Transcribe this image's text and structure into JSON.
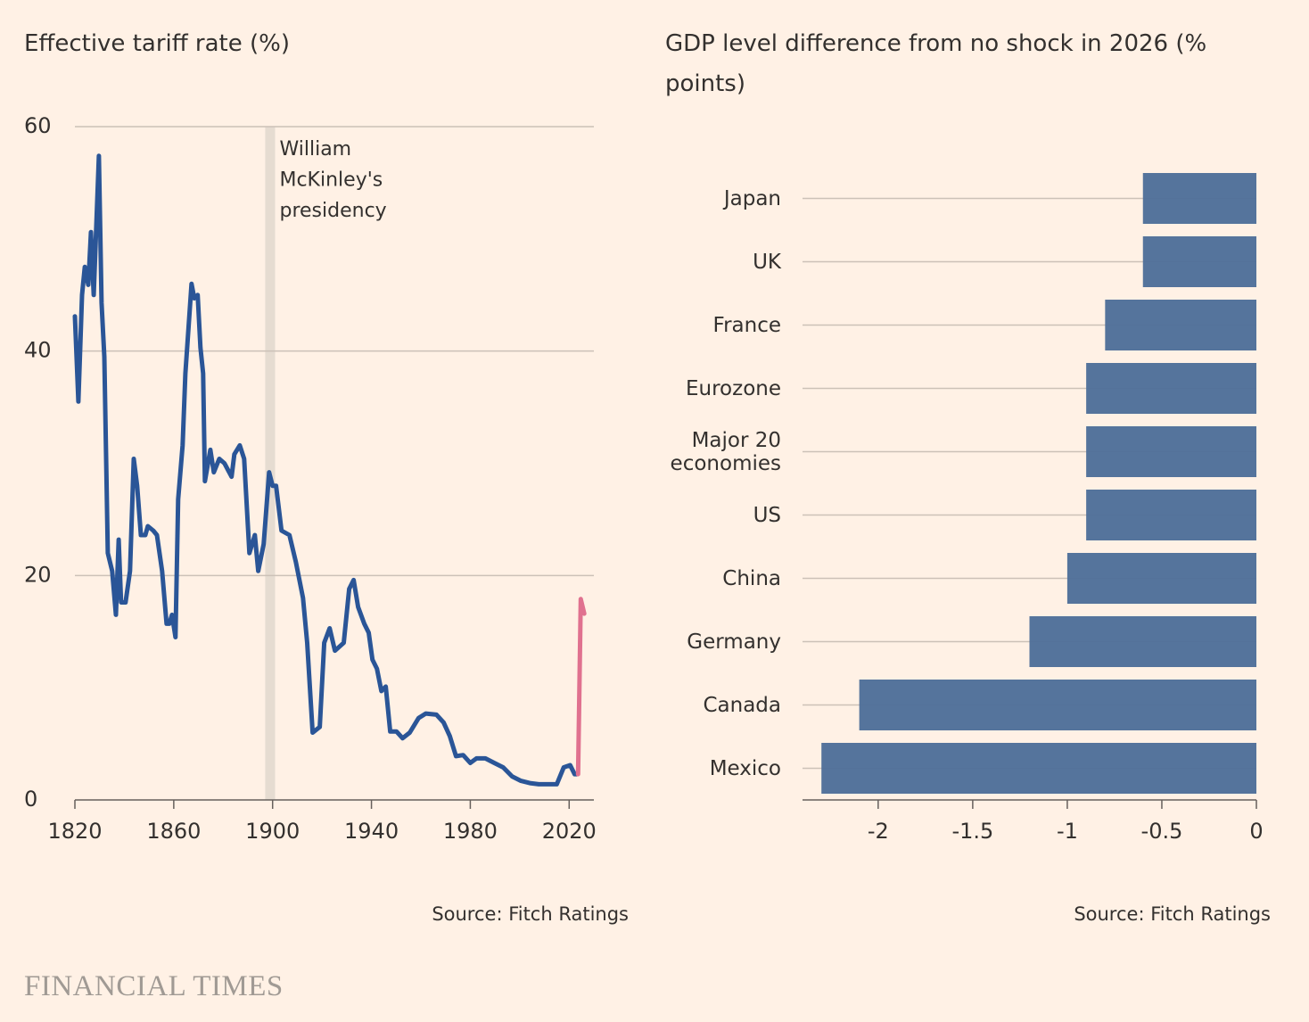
{
  "brand": "FINANCIAL TIMES",
  "chart_data": [
    {
      "type": "line",
      "title": "Effective tariff rate (%)",
      "source": "Source: Fitch Ratings",
      "xlim": [
        1820,
        2030
      ],
      "xticks": [
        1820,
        1860,
        1900,
        1940,
        1980,
        2020
      ],
      "ylim": [
        0,
        60
      ],
      "yticks": [
        0,
        20,
        40,
        60
      ],
      "grid": true,
      "annotation": {
        "lines": [
          "William",
          "McKinley's",
          "presidency"
        ],
        "x_range": [
          1897,
          1901
        ],
        "color": "#e6dcd1"
      },
      "series": [
        {
          "color": "#2a5597",
          "x": [
            1820,
            1821.4,
            1822.9,
            1824,
            1825.4,
            1826.5,
            1827.6,
            1829.7,
            1830.8,
            1831.9,
            1833.3,
            1835.1,
            1836.6,
            1837.7,
            1838.7,
            1840.5,
            1842.3,
            1843.8,
            1845.2,
            1846.7,
            1848.5,
            1849.5,
            1851.7,
            1853.2,
            1855.3,
            1857.1,
            1858.2,
            1859.3,
            1860.7,
            1861.8,
            1863.6,
            1864.7,
            1867.2,
            1868.3,
            1869.7,
            1870.8,
            1871.9,
            1872.6,
            1874.8,
            1876.2,
            1878.4,
            1880.5,
            1883.4,
            1884.5,
            1886.7,
            1888.5,
            1890.6,
            1892.8,
            1894.2,
            1896.4,
            1898.6,
            1900,
            1901.4,
            1903.6,
            1906.8,
            1909.4,
            1912.3,
            1914,
            1916.2,
            1919.1,
            1920.9,
            1923.1,
            1925.2,
            1928.8,
            1931,
            1932.8,
            1934.6,
            1937.1,
            1938.9,
            1940.4,
            1942.2,
            1944,
            1945.8,
            1947.6,
            1950.1,
            1952.6,
            1955.5,
            1959.1,
            1962,
            1966.3,
            1969.2,
            1971.7,
            1974.2,
            1977.1,
            1980,
            1982.5,
            1986.1,
            1989.7,
            1993.3,
            1996.9,
            2000.5,
            2004.1,
            2007.7,
            2011.4,
            2015,
            2017.8,
            2020.4,
            2022.2,
            2023.2
          ],
          "values": [
            43.1,
            35.5,
            45,
            47.5,
            45.9,
            50.6,
            45,
            57.4,
            44.3,
            39.5,
            22,
            20.4,
            16.5,
            23.2,
            17.6,
            17.6,
            20.4,
            30.4,
            28,
            23.6,
            23.6,
            24.4,
            24,
            23.6,
            20.4,
            15.7,
            15.7,
            16.5,
            14.5,
            26.8,
            31.6,
            38,
            46,
            44.7,
            45,
            40.3,
            38,
            28.4,
            31.2,
            29.2,
            30.4,
            30,
            28.8,
            30.8,
            31.6,
            30.4,
            22,
            23.6,
            20.4,
            22.8,
            29.2,
            28,
            28,
            24,
            23.6,
            21.2,
            18,
            14,
            6,
            6.5,
            14,
            15.3,
            13.3,
            14,
            18.8,
            19.6,
            17.2,
            15.7,
            14.9,
            12.5,
            11.7,
            9.7,
            10.1,
            6.1,
            6.1,
            5.5,
            6,
            7.3,
            7.7,
            7.6,
            6.9,
            5.7,
            3.9,
            4,
            3.3,
            3.7,
            3.7,
            3.3,
            2.9,
            2.1,
            1.7,
            1.5,
            1.4,
            1.4,
            1.4,
            2.9,
            3.1,
            2.3,
            2.3
          ]
        },
        {
          "color": "#e0718f",
          "x": [
            2023.6,
            2024.7,
            2026.1
          ],
          "values": [
            2.3,
            17.9,
            16.6
          ]
        }
      ]
    },
    {
      "type": "hbar",
      "title": "GDP level difference from no shock in 2026 (% points)",
      "source": "Source: Fitch Ratings",
      "categories": [
        "Japan",
        "UK",
        "France",
        "Eurozone",
        "Major 20 economies",
        "US",
        "China",
        "Germany",
        "Canada",
        "Mexico"
      ],
      "values": [
        -0.6,
        -0.6,
        -0.8,
        -0.9,
        -0.9,
        -0.9,
        -1.0,
        -1.2,
        -2.1,
        -2.3
      ],
      "color": "#4f6f99",
      "xlim": [
        -2.4,
        0
      ],
      "xticks": [
        -2,
        -1.5,
        -1,
        -0.5,
        0
      ],
      "grid": true
    }
  ]
}
